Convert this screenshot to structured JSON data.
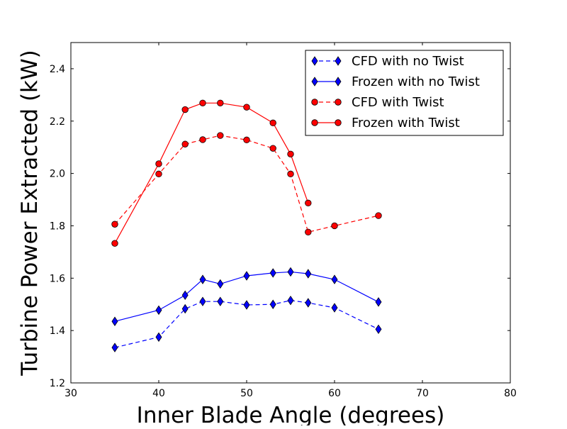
{
  "chart_data": {
    "type": "line",
    "title": "",
    "xlabel": "Inner Blade Angle (degrees)",
    "ylabel": "Turbine Power Extracted (kW)",
    "xlim": [
      30,
      80
    ],
    "ylim": [
      1.2,
      2.5
    ],
    "xticks": [
      "30",
      "40",
      "50",
      "60",
      "70",
      "80"
    ],
    "yticks": [
      "1.2",
      "1.4",
      "1.6",
      "1.8",
      "2.0",
      "2.2",
      "2.4"
    ],
    "grid": false,
    "legend_position": "top-right",
    "series": [
      {
        "name": "CFD with no Twist",
        "color": "#0000ff",
        "linestyle": "dashed",
        "marker": "diamond",
        "x": [
          35,
          40,
          43,
          45,
          47,
          50,
          53,
          55,
          57,
          60,
          65
        ],
        "y": [
          1.335,
          1.375,
          1.483,
          1.511,
          1.511,
          1.498,
          1.5,
          1.515,
          1.506,
          1.487,
          1.405
        ]
      },
      {
        "name": "Frozen with no Twist",
        "color": "#0000ff",
        "linestyle": "solid",
        "marker": "diamond",
        "x": [
          35,
          40,
          43,
          45,
          47,
          50,
          53,
          55,
          57,
          60,
          65
        ],
        "y": [
          1.435,
          1.478,
          1.535,
          1.595,
          1.578,
          1.609,
          1.62,
          1.624,
          1.617,
          1.595,
          1.509
        ]
      },
      {
        "name": "CFD with Twist",
        "color": "#ff0000",
        "linestyle": "dashed",
        "marker": "circle",
        "x": [
          35,
          40,
          43,
          45,
          47,
          50,
          53,
          55,
          57,
          60,
          65
        ],
        "y": [
          1.806,
          1.998,
          2.112,
          2.129,
          2.145,
          2.128,
          2.096,
          1.998,
          1.776,
          1.8,
          1.839
        ]
      },
      {
        "name": "Frozen with Twist",
        "color": "#ff0000",
        "linestyle": "solid",
        "marker": "circle",
        "x": [
          35,
          40,
          43,
          45,
          47,
          50,
          53,
          55,
          57
        ],
        "y": [
          1.733,
          2.037,
          2.244,
          2.269,
          2.269,
          2.253,
          2.193,
          2.074,
          1.887
        ]
      }
    ]
  }
}
